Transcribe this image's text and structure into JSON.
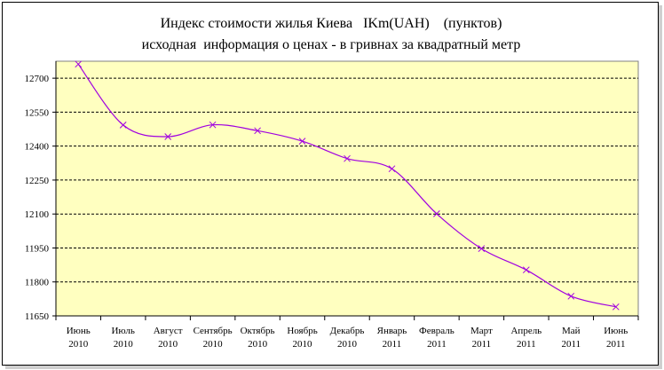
{
  "chart_data": {
    "type": "line",
    "title": "Индекс стоимости жилья Киева   IKm(UAH)    (пунктов)",
    "subtitle": "исходная  информация о ценах - в гривнах за квадратный метр",
    "categories": [
      [
        "Июнь",
        "2010"
      ],
      [
        "Июль",
        "2010"
      ],
      [
        "Август",
        "2010"
      ],
      [
        "Сентябрь",
        "2010"
      ],
      [
        "Октябрь",
        "2010"
      ],
      [
        "Ноябрь",
        "2010"
      ],
      [
        "Декабрь",
        "2010"
      ],
      [
        "Январь",
        "2011"
      ],
      [
        "Февраль",
        "2011"
      ],
      [
        "Март",
        "2011"
      ],
      [
        "Апрель",
        "2011"
      ],
      [
        "Май",
        "2011"
      ],
      [
        "Июнь",
        "2011"
      ]
    ],
    "series": [
      {
        "values": [
          12762,
          12493,
          12442,
          12494,
          12468,
          12422,
          12345,
          12300,
          12101,
          11947,
          11853,
          11737,
          11690
        ]
      }
    ],
    "ylim": [
      11650,
      12775
    ],
    "yticks": [
      11650,
      11800,
      11950,
      12100,
      12250,
      12400,
      12550,
      12700
    ],
    "grid": "horizontal dashed",
    "legend": "none",
    "colors": {
      "plot_background": "#ffffc0",
      "line": "#a000e0",
      "grid": "#000000"
    }
  }
}
